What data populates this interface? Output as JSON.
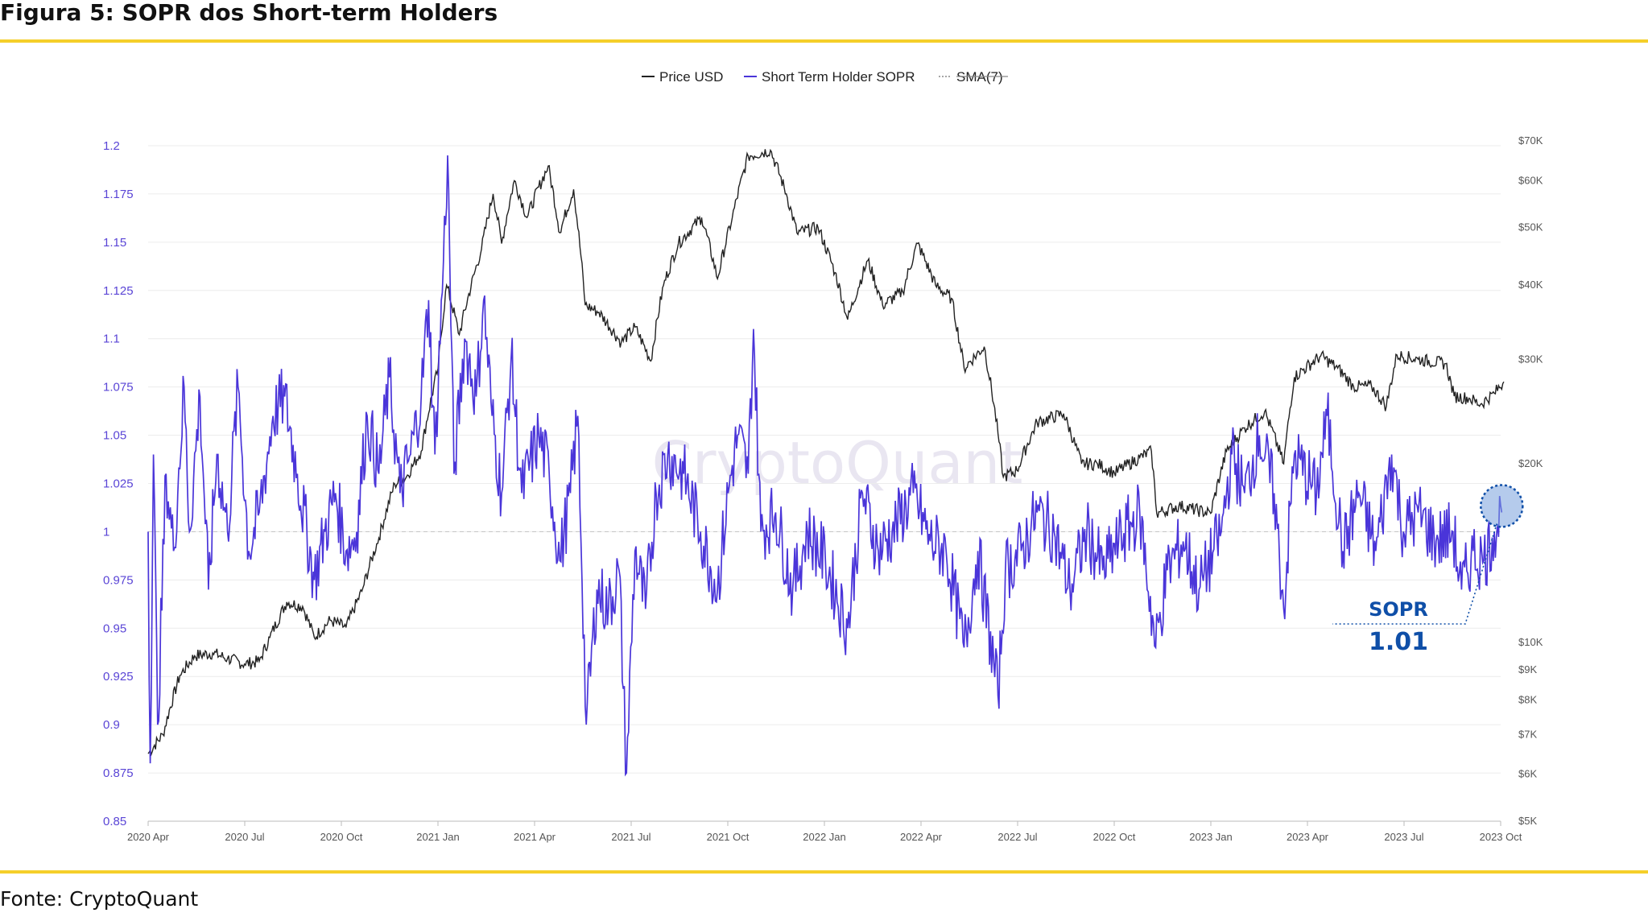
{
  "figure": {
    "title": "Figura 5: SOPR dos Short-term Holders",
    "source": "Fonte: CryptoQuant",
    "watermark": "CryptoQuant"
  },
  "colors": {
    "rule": "#f5cf2a",
    "price_line": "#222222",
    "sopr_line": "#4a35d9",
    "left_axis_text": "#5a45d6",
    "annotation": "#0f4fa8"
  },
  "chart_data": {
    "type": "line",
    "title": "",
    "legend": {
      "placement": "top-center",
      "items": [
        {
          "name": "Price USD",
          "color": "#222222",
          "style": "solid"
        },
        {
          "name": "Short Term Holder SOPR",
          "color": "#4a35d9",
          "style": "solid"
        },
        {
          "name": "SMA(7)",
          "color": "#888888",
          "style": "dotted-disabled"
        }
      ]
    },
    "x_ticks": [
      "2020 Apr",
      "2020 Jul",
      "2020 Oct",
      "2021 Jan",
      "2021 Apr",
      "2021 Jul",
      "2021 Oct",
      "2022 Jan",
      "2022 Apr",
      "2022 Jul",
      "2022 Oct",
      "2023 Jan",
      "2023 Apr",
      "2023 Jul",
      "2023 Oct"
    ],
    "left_axis": {
      "ylim": [
        0.85,
        1.2
      ],
      "ticks": [
        "1.2",
        "1.175",
        "1.15",
        "1.125",
        "1.1",
        "1.075",
        "1.05",
        "1.025",
        "1",
        "0.975",
        "0.95",
        "0.925",
        "0.9",
        "0.875",
        "0.85"
      ],
      "reference_line": 1
    },
    "right_axis": {
      "scale": "log",
      "ylim": [
        5000,
        70000
      ],
      "ticks": [
        {
          "label": "$70K",
          "value": 70000
        },
        {
          "label": "$60K",
          "value": 60000
        },
        {
          "label": "$50K",
          "value": 50000
        },
        {
          "label": "$40K",
          "value": 40000
        },
        {
          "label": "$30K",
          "value": 30000
        },
        {
          "label": "$20K",
          "value": 20000
        },
        {
          "label": "$10K",
          "value": 10000
        },
        {
          "label": "$9K",
          "value": 9000
        },
        {
          "label": "$8K",
          "value": 8000
        },
        {
          "label": "$7K",
          "value": 7000
        },
        {
          "label": "$6K",
          "value": 6000
        },
        {
          "label": "$5K",
          "value": 5000
        }
      ]
    },
    "series": [
      {
        "name": "Price USD",
        "axis": "right",
        "points": [
          [
            "2020-04-01",
            6500
          ],
          [
            "2020-04-15",
            7000
          ],
          [
            "2020-05-01",
            8800
          ],
          [
            "2020-05-15",
            9500
          ],
          [
            "2020-06-01",
            9600
          ],
          [
            "2020-06-15",
            9400
          ],
          [
            "2020-07-01",
            9200
          ],
          [
            "2020-07-15",
            9300
          ],
          [
            "2020-07-25",
            10200
          ],
          [
            "2020-08-10",
            11700
          ],
          [
            "2020-08-25",
            11500
          ],
          [
            "2020-09-05",
            10200
          ],
          [
            "2020-09-20",
            10900
          ],
          [
            "2020-10-05",
            10600
          ],
          [
            "2020-10-20",
            12200
          ],
          [
            "2020-11-05",
            15000
          ],
          [
            "2020-11-20",
            18500
          ],
          [
            "2020-12-01",
            19000
          ],
          [
            "2020-12-15",
            21000
          ],
          [
            "2020-12-31",
            29000
          ],
          [
            "2021-01-08",
            40000
          ],
          [
            "2021-01-20",
            33000
          ],
          [
            "2021-02-10",
            46000
          ],
          [
            "2021-02-21",
            57000
          ],
          [
            "2021-03-01",
            47000
          ],
          [
            "2021-03-13",
            60000
          ],
          [
            "2021-03-25",
            52000
          ],
          [
            "2021-04-14",
            63500
          ],
          [
            "2021-04-25",
            49000
          ],
          [
            "2021-05-08",
            58000
          ],
          [
            "2021-05-19",
            37000
          ],
          [
            "2021-06-01",
            36000
          ],
          [
            "2021-06-22",
            32000
          ],
          [
            "2021-07-05",
            34000
          ],
          [
            "2021-07-20",
            29800
          ],
          [
            "2021-08-01",
            40000
          ],
          [
            "2021-08-15",
            47000
          ],
          [
            "2021-09-06",
            52000
          ],
          [
            "2021-09-21",
            41000
          ],
          [
            "2021-10-05",
            52000
          ],
          [
            "2021-10-20",
            66000
          ],
          [
            "2021-11-10",
            67500
          ],
          [
            "2021-11-25",
            57000
          ],
          [
            "2021-12-05",
            49000
          ],
          [
            "2021-12-25",
            50000
          ],
          [
            "2022-01-10",
            42000
          ],
          [
            "2022-01-22",
            35000
          ],
          [
            "2022-02-10",
            44000
          ],
          [
            "2022-02-24",
            37000
          ],
          [
            "2022-03-15",
            39000
          ],
          [
            "2022-03-29",
            47000
          ],
          [
            "2022-04-15",
            40000
          ],
          [
            "2022-04-30",
            38000
          ],
          [
            "2022-05-12",
            29000
          ],
          [
            "2022-05-31",
            31500
          ],
          [
            "2022-06-13",
            22500
          ],
          [
            "2022-06-18",
            19000
          ],
          [
            "2022-07-01",
            19500
          ],
          [
            "2022-07-20",
            23500
          ],
          [
            "2022-08-14",
            24300
          ],
          [
            "2022-08-31",
            20000
          ],
          [
            "2022-09-15",
            20000
          ],
          [
            "2022-10-01",
            19300
          ],
          [
            "2022-10-25",
            20500
          ],
          [
            "2022-11-05",
            21000
          ],
          [
            "2022-11-10",
            16500
          ],
          [
            "2022-12-01",
            17000
          ],
          [
            "2022-12-31",
            16500
          ],
          [
            "2023-01-15",
            21000
          ],
          [
            "2023-02-01",
            23000
          ],
          [
            "2023-02-20",
            24500
          ],
          [
            "2023-03-10",
            20000
          ],
          [
            "2023-03-20",
            28000
          ],
          [
            "2023-04-14",
            30400
          ],
          [
            "2023-04-30",
            29000
          ],
          [
            "2023-05-15",
            27000
          ],
          [
            "2023-06-01",
            27000
          ],
          [
            "2023-06-15",
            25000
          ],
          [
            "2023-06-25",
            30500
          ],
          [
            "2023-07-15",
            30000
          ],
          [
            "2023-08-10",
            29500
          ],
          [
            "2023-08-18",
            26000
          ],
          [
            "2023-09-01",
            25800
          ],
          [
            "2023-09-12",
            25200
          ],
          [
            "2023-09-25",
            26300
          ],
          [
            "2023-10-04",
            27500
          ]
        ]
      },
      {
        "name": "Short Term Holder SOPR",
        "axis": "left",
        "points": [
          [
            "2020-04-01",
            1.0
          ],
          [
            "2020-04-03",
            0.88
          ],
          [
            "2020-04-06",
            1.04
          ],
          [
            "2020-04-10",
            0.9
          ],
          [
            "2020-04-18",
            1.03
          ],
          [
            "2020-04-25",
            0.99
          ],
          [
            "2020-05-05",
            1.075
          ],
          [
            "2020-05-10",
            1.0
          ],
          [
            "2020-05-20",
            1.07
          ],
          [
            "2020-05-28",
            0.97
          ],
          [
            "2020-06-05",
            1.04
          ],
          [
            "2020-06-15",
            1.0
          ],
          [
            "2020-06-25",
            1.075
          ],
          [
            "2020-07-05",
            0.99
          ],
          [
            "2020-07-15",
            1.01
          ],
          [
            "2020-07-28",
            1.06
          ],
          [
            "2020-08-08",
            1.07
          ],
          [
            "2020-08-20",
            1.03
          ],
          [
            "2020-09-05",
            0.975
          ],
          [
            "2020-09-15",
            1.0
          ],
          [
            "2020-09-25",
            1.02
          ],
          [
            "2020-10-05",
            0.99
          ],
          [
            "2020-10-15",
            1.0
          ],
          [
            "2020-10-25",
            1.06
          ],
          [
            "2020-11-05",
            1.03
          ],
          [
            "2020-11-15",
            1.08
          ],
          [
            "2020-11-25",
            1.02
          ],
          [
            "2020-12-05",
            1.04
          ],
          [
            "2020-12-15",
            1.07
          ],
          [
            "2020-12-22",
            1.12
          ],
          [
            "2020-12-28",
            1.04
          ],
          [
            "2021-01-05",
            1.14
          ],
          [
            "2021-01-09",
            1.195
          ],
          [
            "2021-01-15",
            1.03
          ],
          [
            "2021-01-25",
            1.1
          ],
          [
            "2021-02-05",
            1.07
          ],
          [
            "2021-02-12",
            1.12
          ],
          [
            "2021-02-20",
            1.06
          ],
          [
            "2021-03-01",
            1.02
          ],
          [
            "2021-03-10",
            1.09
          ],
          [
            "2021-03-20",
            1.02
          ],
          [
            "2021-04-05",
            1.05
          ],
          [
            "2021-04-15",
            1.03
          ],
          [
            "2021-04-25",
            0.985
          ],
          [
            "2021-05-05",
            1.02
          ],
          [
            "2021-05-12",
            1.06
          ],
          [
            "2021-05-20",
            0.9
          ],
          [
            "2021-05-30",
            0.97
          ],
          [
            "2021-06-10",
            0.96
          ],
          [
            "2021-06-20",
            0.98
          ],
          [
            "2021-06-27",
            0.875
          ],
          [
            "2021-07-05",
            0.99
          ],
          [
            "2021-07-15",
            0.96
          ],
          [
            "2021-07-25",
            1.02
          ],
          [
            "2021-08-05",
            1.04
          ],
          [
            "2021-08-20",
            1.03
          ],
          [
            "2021-09-05",
            1.0
          ],
          [
            "2021-09-21",
            0.97
          ],
          [
            "2021-10-01",
            1.02
          ],
          [
            "2021-10-10",
            1.05
          ],
          [
            "2021-10-20",
            1.03
          ],
          [
            "2021-10-25",
            1.105
          ],
          [
            "2021-11-01",
            1.0
          ],
          [
            "2021-11-15",
            1.01
          ],
          [
            "2021-12-01",
            0.97
          ],
          [
            "2021-12-15",
            1.0
          ],
          [
            "2022-01-01",
            0.985
          ],
          [
            "2022-01-22",
            0.95
          ],
          [
            "2022-02-05",
            1.02
          ],
          [
            "2022-02-20",
            0.99
          ],
          [
            "2022-03-05",
            1.0
          ],
          [
            "2022-03-25",
            1.02
          ],
          [
            "2022-04-10",
            0.995
          ],
          [
            "2022-04-25",
            0.99
          ],
          [
            "2022-05-12",
            0.94
          ],
          [
            "2022-05-25",
            0.99
          ],
          [
            "2022-06-13",
            0.915
          ],
          [
            "2022-06-20",
            0.98
          ],
          [
            "2022-07-05",
            0.99
          ],
          [
            "2022-07-20",
            1.01
          ],
          [
            "2022-08-05",
            1.0
          ],
          [
            "2022-08-20",
            0.97
          ],
          [
            "2022-09-05",
            1.0
          ],
          [
            "2022-09-20",
            0.98
          ],
          [
            "2022-10-05",
            0.995
          ],
          [
            "2022-10-25",
            1.01
          ],
          [
            "2022-11-09",
            0.94
          ],
          [
            "2022-11-20",
            0.98
          ],
          [
            "2022-12-05",
            0.995
          ],
          [
            "2022-12-20",
            0.97
          ],
          [
            "2023-01-10",
            1.0
          ],
          [
            "2023-01-20",
            1.04
          ],
          [
            "2023-02-01",
            1.02
          ],
          [
            "2023-02-15",
            1.05
          ],
          [
            "2023-03-01",
            1.02
          ],
          [
            "2023-03-10",
            0.96
          ],
          [
            "2023-03-20",
            1.04
          ],
          [
            "2023-04-10",
            1.02
          ],
          [
            "2023-04-20",
            1.06
          ],
          [
            "2023-05-05",
            0.99
          ],
          [
            "2023-05-20",
            1.02
          ],
          [
            "2023-06-05",
            0.99
          ],
          [
            "2023-06-20",
            1.04
          ],
          [
            "2023-07-01",
            1.0
          ],
          [
            "2023-07-15",
            1.01
          ],
          [
            "2023-08-01",
            0.995
          ],
          [
            "2023-08-17",
            1.0
          ],
          [
            "2023-08-25",
            0.97
          ],
          [
            "2023-09-05",
            0.99
          ],
          [
            "2023-09-15",
            0.985
          ],
          [
            "2023-09-25",
            1.0
          ],
          [
            "2023-10-02",
            1.01
          ]
        ]
      }
    ],
    "annotation": {
      "label": "SOPR",
      "value_text": "1.01",
      "target": {
        "date": "2023-10-02",
        "value": 1.01
      }
    }
  }
}
